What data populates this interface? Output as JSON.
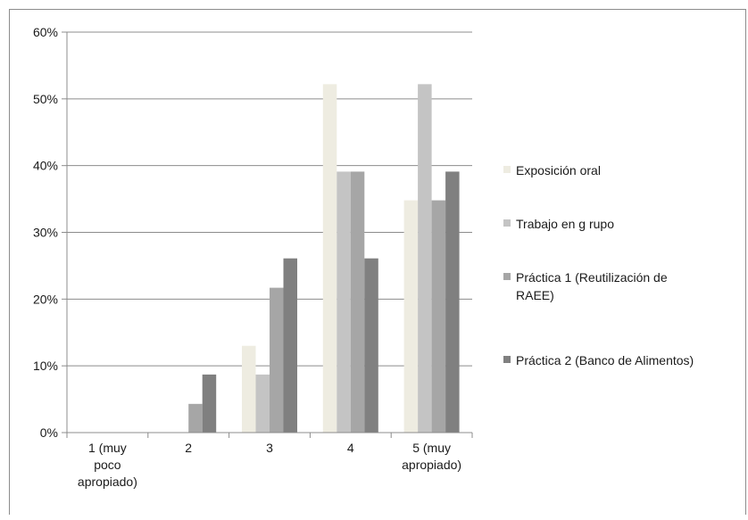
{
  "chart_data": {
    "type": "bar",
    "categories": [
      [
        "1 (muy",
        "poco",
        "apropiado)"
      ],
      [
        "2"
      ],
      [
        "3"
      ],
      [
        "4"
      ],
      [
        "5 (muy",
        "apropiado)"
      ]
    ],
    "series": [
      {
        "name": "Exposición oral",
        "color": "#eeece1",
        "values": [
          0,
          0,
          13.0,
          52.2,
          34.8
        ]
      },
      {
        "name": "Trabajo en g rupo",
        "color": "#c4c4c4",
        "values": [
          0,
          0,
          8.7,
          39.1,
          52.2
        ]
      },
      {
        "name": [
          "Práctica 1 (Reutilización de",
          "RAEE)"
        ],
        "color": "#a6a6a6",
        "values": [
          0,
          4.3,
          21.7,
          39.1,
          34.8
        ]
      },
      {
        "name": "Práctica 2 (Banco de Alimentos)",
        "color": "#808080",
        "values": [
          0,
          8.7,
          26.1,
          26.1,
          39.1
        ]
      }
    ],
    "y_ticks": [
      "0%",
      "10%",
      "20%",
      "30%",
      "40%",
      "50%",
      "60%"
    ],
    "ylim": [
      0,
      60
    ],
    "grid": true,
    "legend_position": "right",
    "title": "",
    "xlabel": "",
    "ylabel": ""
  }
}
